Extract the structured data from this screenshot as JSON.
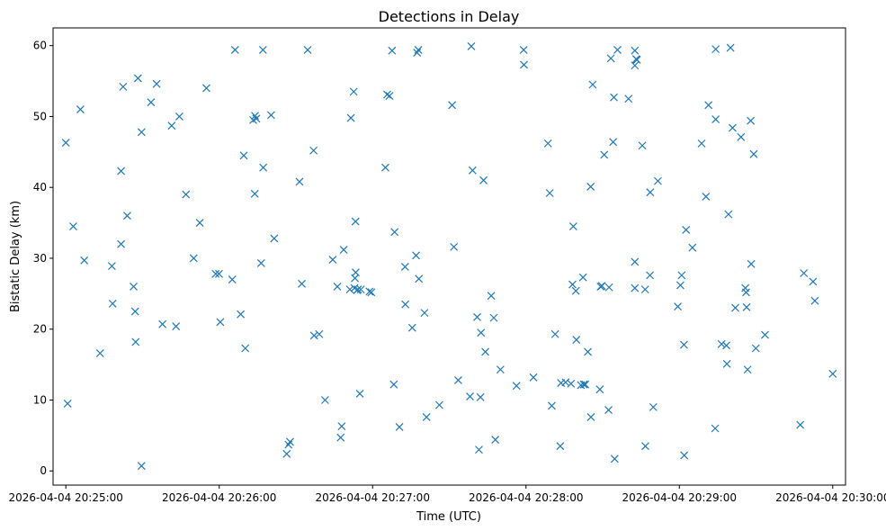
{
  "chart_data": {
    "type": "scatter",
    "title": "Detections in Delay",
    "xlabel": "Time (UTC)",
    "ylabel": "Bistatic Delay (km)",
    "x_unit": "seconds after 2026-04-04 20:25:00",
    "xlim": [
      -5,
      305
    ],
    "ylim": [
      -2,
      62.5
    ],
    "x_ticks": [
      0,
      60,
      120,
      180,
      240,
      300
    ],
    "x_tick_labels": [
      "2026-04-04 20:25:00",
      "2026-04-04 20:26:00",
      "2026-04-04 20:27:00",
      "2026-04-04 20:28:00",
      "2026-04-04 20:29:00",
      "2026-04-04 20:30:00"
    ],
    "y_ticks": [
      0,
      10,
      20,
      30,
      40,
      50,
      60
    ],
    "y_tick_labels": [
      "0",
      "10",
      "20",
      "30",
      "40",
      "50",
      "60"
    ],
    "marker": "x",
    "color": "#1f77b4",
    "series": [
      {
        "points": [
          [
            0,
            46.3
          ],
          [
            0.7,
            9.5
          ],
          [
            2.9,
            34.5
          ],
          [
            5.7,
            51
          ],
          [
            7.2,
            29.7
          ],
          [
            13.4,
            16.6
          ],
          [
            18,
            28.9
          ],
          [
            18.3,
            23.6
          ],
          [
            21.6,
            42.3
          ],
          [
            21.6,
            32
          ],
          [
            22.4,
            54.2
          ],
          [
            24,
            36
          ],
          [
            26.5,
            26
          ],
          [
            27.1,
            22.5
          ],
          [
            27.3,
            18.2
          ],
          [
            28.2,
            55.4
          ],
          [
            29.6,
            47.8
          ],
          [
            29.6,
            0.7
          ],
          [
            33.3,
            52
          ],
          [
            35.5,
            54.6
          ],
          [
            37.8,
            20.7
          ],
          [
            41.4,
            48.7
          ],
          [
            43.1,
            20.4
          ],
          [
            44.4,
            50
          ],
          [
            47,
            39
          ],
          [
            50,
            30
          ],
          [
            52.4,
            35
          ],
          [
            55,
            54
          ],
          [
            58.6,
            27.8
          ],
          [
            59.9,
            27.8
          ],
          [
            60.4,
            21
          ],
          [
            65.1,
            27
          ],
          [
            66.2,
            59.4
          ],
          [
            68.4,
            22.1
          ],
          [
            69.6,
            44.5
          ],
          [
            70.2,
            17.3
          ],
          [
            73.3,
            49.5
          ],
          [
            74,
            50.1
          ],
          [
            73.9,
            39.1
          ],
          [
            74.5,
            49.7
          ],
          [
            76.4,
            29.3
          ],
          [
            77.2,
            42.8
          ],
          [
            77.1,
            59.4
          ],
          [
            80.3,
            50.2
          ],
          [
            81.5,
            32.8
          ],
          [
            86.4,
            2.4
          ],
          [
            87.1,
            3.7
          ],
          [
            87.7,
            4.1
          ],
          [
            91.4,
            40.8
          ],
          [
            92.3,
            26.4
          ],
          [
            94.6,
            59.4
          ],
          [
            96.9,
            45.2
          ],
          [
            97.1,
            19.1
          ],
          [
            99.1,
            19.3
          ],
          [
            101.4,
            10
          ],
          [
            104.4,
            29.8
          ],
          [
            106.2,
            26
          ],
          [
            107.5,
            4.7
          ],
          [
            107.9,
            6.3
          ],
          [
            108.7,
            31.2
          ],
          [
            111.1,
            25.6
          ],
          [
            111.5,
            49.8
          ],
          [
            112.6,
            53.5
          ],
          [
            112.9,
            25.8
          ],
          [
            113.1,
            27.2
          ],
          [
            113.3,
            35.2
          ],
          [
            113.4,
            28
          ],
          [
            113.9,
            25.5
          ],
          [
            114.3,
            25.6
          ],
          [
            115,
            10.9
          ],
          [
            115.4,
            25.6
          ],
          [
            118.8,
            25.3
          ],
          [
            119.5,
            25.2
          ],
          [
            125,
            42.8
          ],
          [
            125.7,
            53.1
          ],
          [
            126.6,
            52.9
          ],
          [
            127.6,
            59.3
          ],
          [
            128.3,
            12.2
          ],
          [
            128.6,
            33.7
          ],
          [
            130.5,
            6.2
          ],
          [
            132.7,
            28.8
          ],
          [
            132.8,
            23.5
          ],
          [
            135.5,
            20.2
          ],
          [
            137,
            30.4
          ],
          [
            137.4,
            59
          ],
          [
            137.9,
            59.4
          ],
          [
            138.1,
            27.1
          ],
          [
            140.3,
            22.3
          ],
          [
            141.1,
            7.6
          ],
          [
            146.1,
            9.3
          ],
          [
            151.1,
            51.6
          ],
          [
            151.8,
            31.6
          ],
          [
            153.5,
            12.8
          ],
          [
            158.1,
            10.5
          ],
          [
            158.6,
            59.9
          ],
          [
            159.1,
            42.4
          ],
          [
            160.9,
            21.7
          ],
          [
            161.6,
            3
          ],
          [
            162.2,
            10.4
          ],
          [
            162.4,
            19.5
          ],
          [
            163.4,
            41
          ],
          [
            164.1,
            16.8
          ],
          [
            166.4,
            24.7
          ],
          [
            167.4,
            21.6
          ],
          [
            168,
            4.4
          ],
          [
            170,
            14.3
          ],
          [
            176.3,
            12
          ],
          [
            179.1,
            59.4
          ],
          [
            179.2,
            57.3
          ],
          [
            182.9,
            13.2
          ],
          [
            188.6,
            46.2
          ],
          [
            189.3,
            39.2
          ],
          [
            190.1,
            9.2
          ],
          [
            191.4,
            19.3
          ],
          [
            193.4,
            3.5
          ],
          [
            193.7,
            12.4
          ],
          [
            195.5,
            12.5
          ],
          [
            197.6,
            12.3
          ],
          [
            198.2,
            26.3
          ],
          [
            198.5,
            34.5
          ],
          [
            199.5,
            25.4
          ],
          [
            199.7,
            18.5
          ],
          [
            201.5,
            12.1
          ],
          [
            202.3,
            27.3
          ],
          [
            202.6,
            12.2
          ],
          [
            203.2,
            12.2
          ],
          [
            204.2,
            16.8
          ],
          [
            205.3,
            40.1
          ],
          [
            205.4,
            7.6
          ],
          [
            206.1,
            54.5
          ],
          [
            208.9,
            11.5
          ],
          [
            209.2,
            26
          ],
          [
            209.7,
            26.1
          ],
          [
            210.6,
            44.6
          ],
          [
            212.3,
            8.6
          ],
          [
            212.5,
            25.9
          ],
          [
            213.2,
            58.2
          ],
          [
            214.1,
            46.4
          ],
          [
            214.4,
            52.7
          ],
          [
            214.7,
            1.7
          ],
          [
            215.8,
            59.4
          ],
          [
            220.1,
            52.5
          ],
          [
            222.6,
            29.5
          ],
          [
            222.6,
            59.3
          ],
          [
            222.6,
            57.2
          ],
          [
            222.6,
            25.8
          ],
          [
            223.1,
            58.1
          ],
          [
            223.4,
            58
          ],
          [
            225.5,
            45.9
          ],
          [
            226.7,
            3.5
          ],
          [
            226.6,
            25.6
          ],
          [
            228.6,
            39.3
          ],
          [
            228.5,
            27.6
          ],
          [
            229.8,
            9
          ],
          [
            231.6,
            40.9
          ],
          [
            239.4,
            23.2
          ],
          [
            240.4,
            26.2
          ],
          [
            240.9,
            27.6
          ],
          [
            241.8,
            17.8
          ],
          [
            241.9,
            2.2
          ],
          [
            242.6,
            34
          ],
          [
            245.1,
            31.5
          ],
          [
            248.7,
            46.2
          ],
          [
            250.4,
            38.7
          ],
          [
            251.4,
            51.6
          ],
          [
            254.2,
            49.6
          ],
          [
            254,
            6
          ],
          [
            254.2,
            59.5
          ],
          [
            256.5,
            17.9
          ],
          [
            258.4,
            17.7
          ],
          [
            258.6,
            15.1
          ],
          [
            259.2,
            36.2
          ],
          [
            260,
            59.7
          ],
          [
            260.8,
            48.4
          ],
          [
            261.9,
            23
          ],
          [
            264.1,
            47.1
          ],
          [
            265.8,
            25.8
          ],
          [
            266.1,
            25.2
          ],
          [
            266.3,
            23.1
          ],
          [
            266.7,
            14.3
          ],
          [
            267.9,
            49.4
          ],
          [
            268.1,
            29.2
          ],
          [
            269.1,
            44.7
          ],
          [
            269.9,
            17.3
          ],
          [
            273.5,
            19.2
          ],
          [
            287.3,
            6.5
          ],
          [
            288.7,
            27.9
          ],
          [
            292.3,
            26.7
          ],
          [
            293,
            24
          ],
          [
            300,
            13.7
          ]
        ]
      }
    ]
  }
}
